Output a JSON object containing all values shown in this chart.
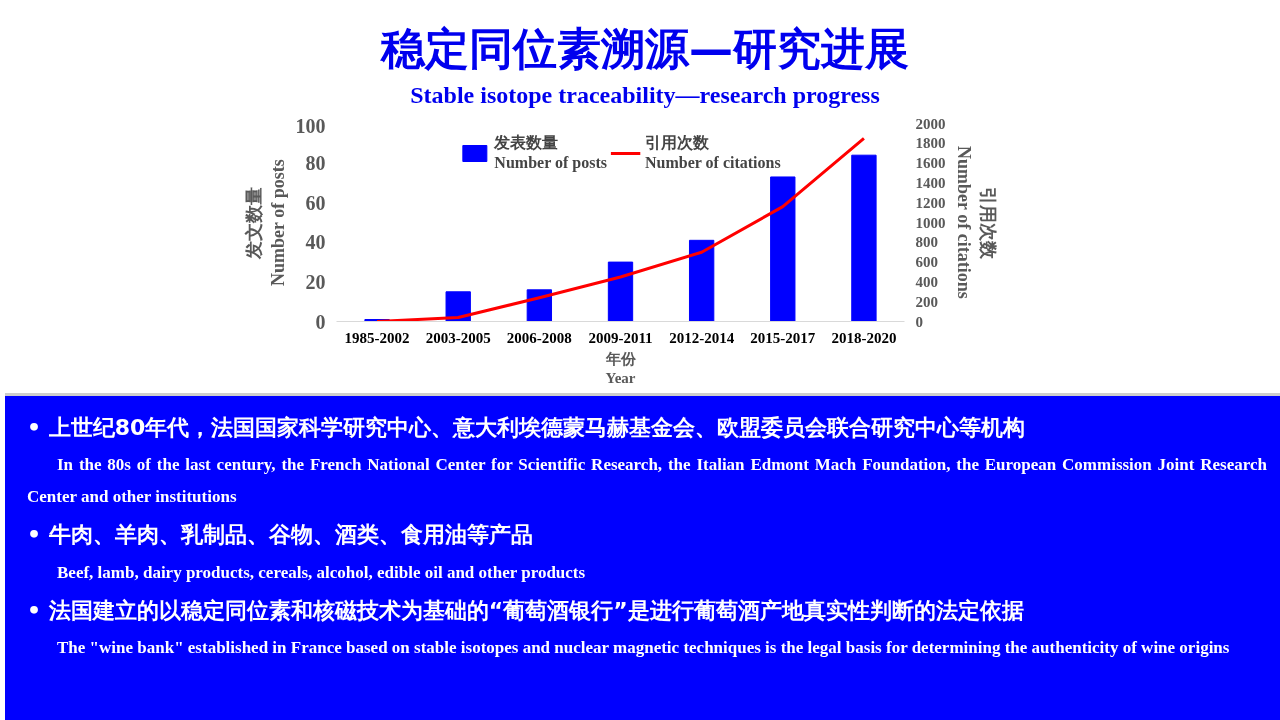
{
  "chart_data": {
    "type": "bar",
    "title": "稳定同位素溯源—研究进展",
    "subtitle": "Stable isotope traceability—research progress",
    "xlabel": "年份\nYear",
    "ylabel": "发文数量\nNumber of posts",
    "y2label": "引用次数\nNumber of citations",
    "categories": [
      "1985-2002",
      "2003-2005",
      "2006-2008",
      "2009-2011",
      "2012-2014",
      "2015-2017",
      "2018-2020"
    ],
    "series": [
      {
        "name": "发表数量\nNumber of posts",
        "color": "#0000ff",
        "values": [
          1,
          15,
          16,
          30,
          41,
          73,
          84
        ]
      },
      {
        "name": "引用次数\nNumber of citations",
        "type": "line",
        "axis": "y2",
        "color": "#ff0000",
        "values": [
          0,
          40,
          240,
          450,
          700,
          1160,
          1850
        ]
      }
    ],
    "ylim": [
      0,
      100
    ],
    "yticks": [
      0,
      20,
      40,
      60,
      80,
      100
    ],
    "y2lim": [
      0,
      2000
    ],
    "y2ticks": [
      0,
      200,
      400,
      600,
      800,
      1000,
      1200,
      1400,
      1600,
      1800,
      2000
    ],
    "grid": false,
    "legend": "top",
    "annotations": [
      "•  上世纪80年代，法国国家科学研究中心、意大利埃德蒙马赫基金会、欧盟委员会联合研究中心等机构",
      "In the 80s of the last century, the French National Center for Scientific Research, the Italian Edmont Mach Foundation, the European Commission Joint Research Center and other institutions",
      "•  牛肉、羊肉、乳制品、谷物、酒类、食用油等产品",
      "Beef, lamb, dairy products, cereals, alcohol, edible oil and other products",
      "•  法国建立的以稳定同位素和核磁技术为基础的“葡萄酒银行”是进行葡萄酒产地真实性判断的法定依据",
      "The \"wine bank\" established in France based on stable isotopes and nuclear magnetic techniques is the legal basis for determining the authenticity of wine origins"
    ]
  }
}
